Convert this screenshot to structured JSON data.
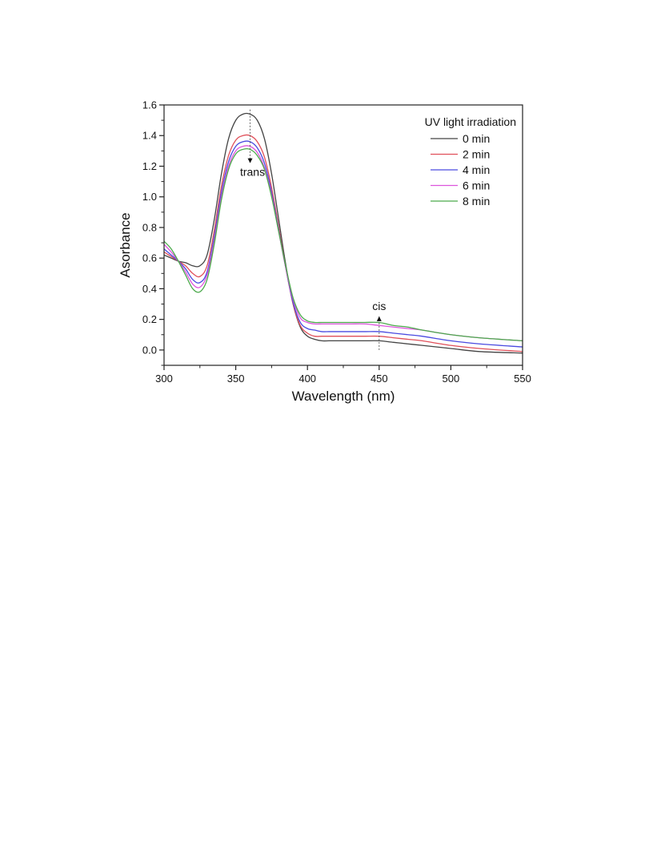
{
  "chart_data": {
    "type": "line",
    "title": "",
    "xlabel": "Wavelength (nm)",
    "ylabel": "Asorbance",
    "xlim": [
      300,
      550
    ],
    "ylim": [
      -0.1,
      1.6
    ],
    "xticks": [
      300,
      350,
      400,
      450,
      500,
      550
    ],
    "yticks": [
      0.0,
      0.2,
      0.4,
      0.6,
      0.8,
      1.0,
      1.2,
      1.4,
      1.6
    ],
    "xtick_labels": [
      "300",
      "350",
      "400",
      "450",
      "500",
      "550"
    ],
    "ytick_labels": [
      "0.0",
      "0.2",
      "0.4",
      "0.6",
      "0.8",
      "1.0",
      "1.2",
      "1.4",
      "1.6"
    ],
    "grid": false,
    "legend": {
      "title": "UV light irradiation",
      "placement": "top-right"
    },
    "series": [
      {
        "name": "0 min",
        "color": "#444444",
        "x": [
          300,
          305,
          310,
          315,
          320,
          325,
          330,
          335,
          340,
          345,
          350,
          355,
          360,
          365,
          370,
          375,
          380,
          385,
          390,
          395,
          400,
          405,
          410,
          415,
          420,
          430,
          440,
          450,
          460,
          470,
          480,
          500,
          520,
          550
        ],
        "y": [
          0.62,
          0.6,
          0.58,
          0.57,
          0.55,
          0.55,
          0.62,
          0.85,
          1.15,
          1.38,
          1.5,
          1.54,
          1.54,
          1.5,
          1.38,
          1.15,
          0.85,
          0.55,
          0.3,
          0.15,
          0.09,
          0.07,
          0.06,
          0.06,
          0.06,
          0.06,
          0.06,
          0.06,
          0.05,
          0.04,
          0.03,
          0.01,
          -0.01,
          -0.02
        ]
      },
      {
        "name": "2 min",
        "color": "#e0505a",
        "x": [
          300,
          305,
          310,
          315,
          320,
          325,
          330,
          335,
          340,
          345,
          350,
          355,
          360,
          365,
          370,
          375,
          380,
          385,
          390,
          395,
          400,
          405,
          410,
          415,
          420,
          430,
          440,
          450,
          460,
          470,
          480,
          500,
          520,
          550
        ],
        "y": [
          0.64,
          0.61,
          0.58,
          0.55,
          0.5,
          0.48,
          0.55,
          0.78,
          1.07,
          1.27,
          1.37,
          1.4,
          1.4,
          1.36,
          1.26,
          1.06,
          0.8,
          0.53,
          0.3,
          0.16,
          0.11,
          0.09,
          0.09,
          0.09,
          0.09,
          0.09,
          0.09,
          0.09,
          0.08,
          0.07,
          0.06,
          0.03,
          0.01,
          -0.01
        ]
      },
      {
        "name": "4 min",
        "color": "#4a4ae0",
        "x": [
          300,
          305,
          310,
          315,
          320,
          325,
          330,
          335,
          340,
          345,
          350,
          355,
          360,
          365,
          370,
          375,
          380,
          385,
          390,
          395,
          400,
          405,
          410,
          415,
          420,
          430,
          440,
          450,
          460,
          470,
          480,
          500,
          520,
          550
        ],
        "y": [
          0.66,
          0.62,
          0.58,
          0.53,
          0.46,
          0.44,
          0.51,
          0.74,
          1.03,
          1.23,
          1.33,
          1.36,
          1.36,
          1.32,
          1.22,
          1.03,
          0.78,
          0.53,
          0.31,
          0.18,
          0.14,
          0.13,
          0.12,
          0.12,
          0.12,
          0.12,
          0.12,
          0.12,
          0.11,
          0.1,
          0.09,
          0.06,
          0.04,
          0.02
        ]
      },
      {
        "name": "6 min",
        "color": "#dd55dd",
        "x": [
          300,
          305,
          310,
          315,
          320,
          325,
          330,
          335,
          340,
          345,
          350,
          355,
          360,
          365,
          370,
          375,
          380,
          385,
          390,
          395,
          400,
          405,
          410,
          415,
          420,
          430,
          440,
          450,
          460,
          470,
          480,
          500,
          520,
          550
        ],
        "y": [
          0.69,
          0.64,
          0.58,
          0.51,
          0.43,
          0.41,
          0.49,
          0.71,
          1.0,
          1.2,
          1.3,
          1.33,
          1.33,
          1.29,
          1.19,
          1.01,
          0.77,
          0.53,
          0.33,
          0.21,
          0.18,
          0.17,
          0.17,
          0.17,
          0.17,
          0.17,
          0.17,
          0.16,
          0.15,
          0.14,
          0.13,
          0.1,
          0.08,
          0.06
        ]
      },
      {
        "name": "8 min",
        "color": "#4caa4c",
        "x": [
          300,
          305,
          310,
          315,
          320,
          325,
          330,
          335,
          340,
          345,
          350,
          355,
          360,
          365,
          370,
          375,
          380,
          385,
          390,
          395,
          400,
          405,
          410,
          415,
          420,
          430,
          440,
          450,
          460,
          470,
          480,
          500,
          520,
          550
        ],
        "y": [
          0.71,
          0.66,
          0.58,
          0.49,
          0.4,
          0.38,
          0.46,
          0.69,
          0.98,
          1.18,
          1.28,
          1.31,
          1.31,
          1.27,
          1.18,
          1.0,
          0.77,
          0.54,
          0.34,
          0.23,
          0.19,
          0.18,
          0.18,
          0.18,
          0.18,
          0.18,
          0.18,
          0.18,
          0.16,
          0.15,
          0.13,
          0.1,
          0.08,
          0.06
        ]
      }
    ],
    "annotations": [
      {
        "text": "trans",
        "x": 360,
        "direction": "down",
        "line_from": 1.57,
        "arrow_to": 1.22
      },
      {
        "text": "cis",
        "x": 450,
        "direction": "up",
        "line_from": 0.0,
        "arrow_to": 0.22
      }
    ]
  }
}
